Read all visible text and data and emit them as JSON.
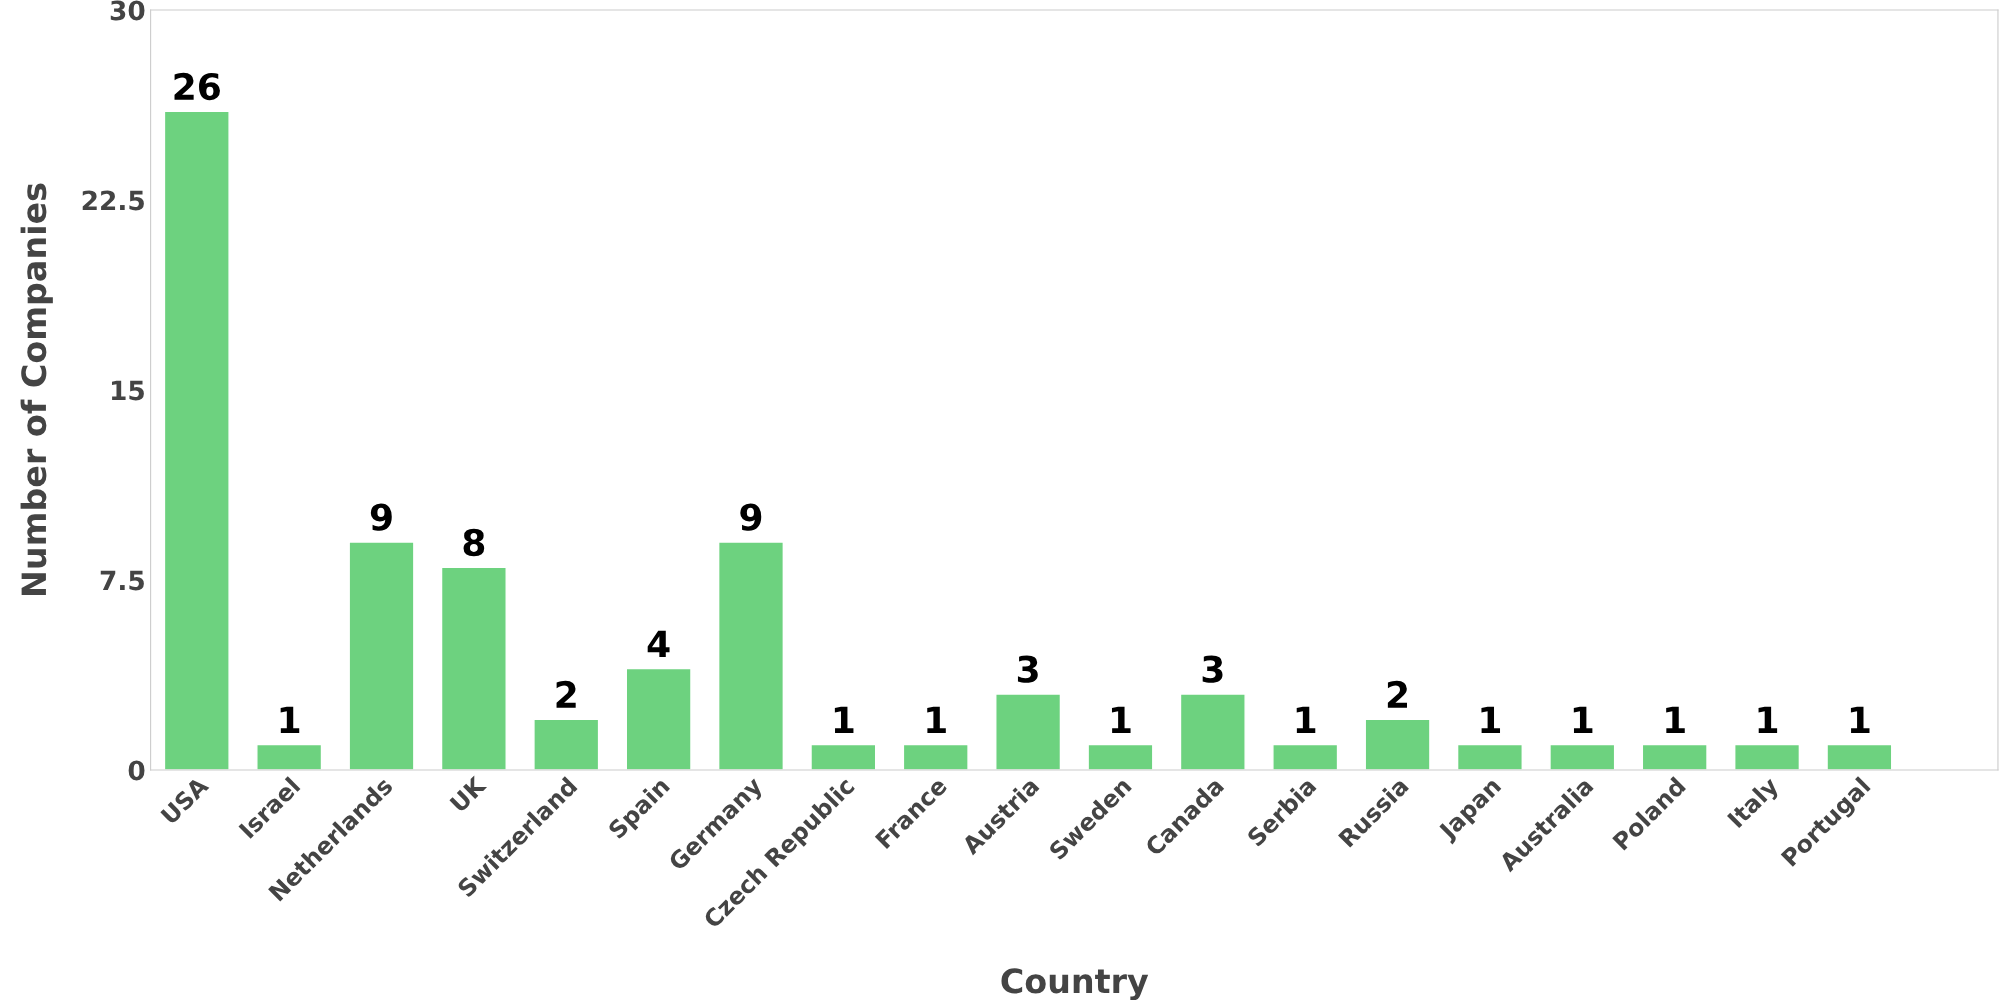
{
  "chart_data": {
    "type": "bar",
    "xlabel": "Country",
    "ylabel": "Number of Companies",
    "categories": [
      "USA",
      "Israel",
      "Netherlands",
      "UK",
      "Switzerland",
      "Spain",
      "Germany",
      "Czech Republic",
      "France",
      "Austria",
      "Sweden",
      "Canada",
      "Serbia",
      "Russia",
      "Japan",
      "Australia",
      "Poland",
      "Italy",
      "Portugal",
      null
    ],
    "values": [
      26,
      1,
      9,
      8,
      2,
      4,
      9,
      1,
      1,
      3,
      1,
      3,
      1,
      2,
      1,
      1,
      1,
      1,
      1,
      null
    ],
    "color": "#6dd27f",
    "ylim": [
      0,
      30
    ],
    "yticks": [
      0,
      7.5,
      15,
      22.5,
      30
    ],
    "grid": false,
    "data_labels": true
  }
}
